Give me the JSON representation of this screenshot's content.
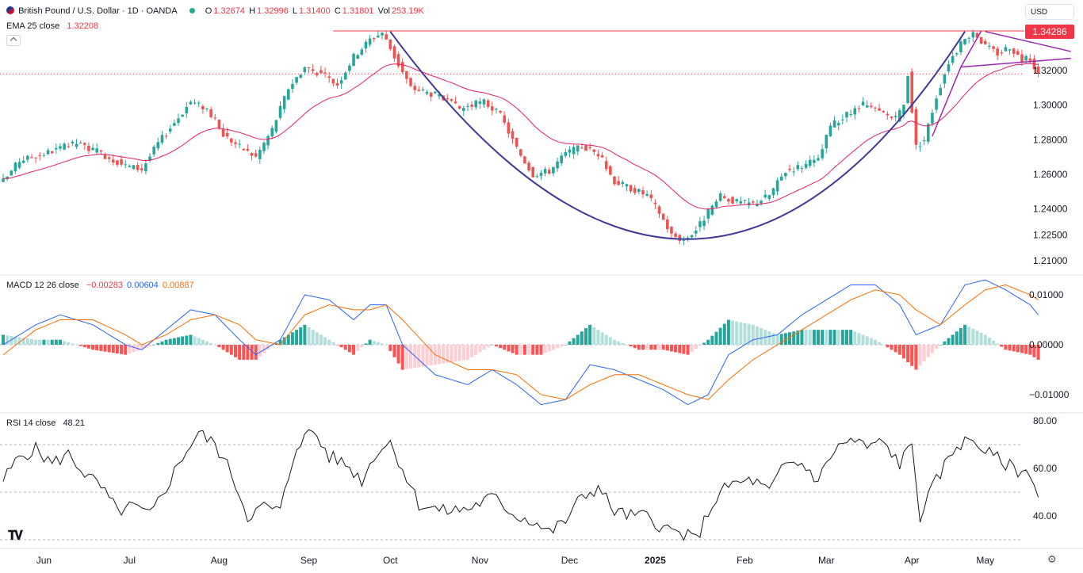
{
  "header": {
    "symbol": "British Pound / U.S. Dollar · 1D · OANDA",
    "o_label": "O",
    "o_value": "1.32674",
    "h_label": "H",
    "h_value": "1.32996",
    "l_label": "L",
    "l_value": "1.31400",
    "c_label": "C",
    "c_value": "1.31801",
    "vol_label": "Vol",
    "vol_value": "253.19K",
    "currency": "USD",
    "last_price": "1.34286"
  },
  "ema_legend": {
    "name": "EMA 25 close",
    "value": "1.32208"
  },
  "macd_legend": {
    "name": "MACD 12 26 close",
    "hist": "−0.00283",
    "macd": "0.00604",
    "signal": "0.00887"
  },
  "rsi_legend": {
    "name": "RSI 14 close",
    "value": "48.21"
  },
  "colors": {
    "up": "#26a69a",
    "down": "#ef5350",
    "ema": "#e91e63",
    "macd": "#2962ff",
    "signal": "#ff6d00",
    "pattern": "#3f3a9a",
    "flag": "#9c27b0",
    "resistance": "#f23645"
  },
  "icons": [
    "flag-icon",
    "chevron-up-icon",
    "tradingview-logo-icon",
    "settings-icon"
  ],
  "chart_data": [
    {
      "type": "candlestick",
      "title": "British Pound / U.S. Dollar · 1D · OANDA",
      "price_axis_ticks": [
        "1.32000",
        "1.30000",
        "1.28000",
        "1.26000",
        "1.24000",
        "1.22500",
        "1.21000"
      ],
      "ylim": [
        1.205,
        1.347
      ],
      "x_tick_labels": [
        "Jun",
        "Jul",
        "Aug",
        "Sep",
        "Oct",
        "Nov",
        "Dec",
        "2025",
        "Feb",
        "Mar",
        "Apr",
        "May"
      ],
      "x_tick_days": [
        10,
        31,
        53,
        75,
        95,
        117,
        139,
        160,
        182,
        202,
        223,
        241
      ],
      "n_days": 255,
      "anchors_close": [
        [
          0,
          1.256
        ],
        [
          4,
          1.268
        ],
        [
          10,
          1.272
        ],
        [
          18,
          1.278
        ],
        [
          24,
          1.272
        ],
        [
          30,
          1.265
        ],
        [
          34,
          1.263
        ],
        [
          38,
          1.278
        ],
        [
          46,
          1.302
        ],
        [
          50,
          1.298
        ],
        [
          54,
          1.283
        ],
        [
          58,
          1.276
        ],
        [
          62,
          1.27
        ],
        [
          66,
          1.286
        ],
        [
          70,
          1.31
        ],
        [
          74,
          1.322
        ],
        [
          78,
          1.318
        ],
        [
          82,
          1.312
        ],
        [
          86,
          1.328
        ],
        [
          90,
          1.338
        ],
        [
          93,
          1.342
        ],
        [
          96,
          1.328
        ],
        [
          100,
          1.31
        ],
        [
          106,
          1.306
        ],
        [
          112,
          1.298
        ],
        [
          118,
          1.302
        ],
        [
          122,
          1.294
        ],
        [
          126,
          1.275
        ],
        [
          130,
          1.26
        ],
        [
          134,
          1.262
        ],
        [
          138,
          1.272
        ],
        [
          142,
          1.276
        ],
        [
          146,
          1.272
        ],
        [
          150,
          1.256
        ],
        [
          154,
          1.252
        ],
        [
          158,
          1.248
        ],
        [
          161,
          1.238
        ],
        [
          164,
          1.225
        ],
        [
          167,
          1.222
        ],
        [
          170,
          1.228
        ],
        [
          173,
          1.238
        ],
        [
          176,
          1.247
        ],
        [
          180,
          1.244
        ],
        [
          184,
          1.243
        ],
        [
          188,
          1.248
        ],
        [
          192,
          1.262
        ],
        [
          196,
          1.265
        ],
        [
          200,
          1.268
        ],
        [
          203,
          1.288
        ],
        [
          207,
          1.294
        ],
        [
          211,
          1.3
        ],
        [
          215,
          1.296
        ],
        [
          219,
          1.292
        ],
        [
          221,
          1.3
        ],
        [
          222,
          1.318
        ],
        [
          224,
          1.276
        ],
        [
          226,
          1.28
        ],
        [
          229,
          1.305
        ],
        [
          232,
          1.325
        ],
        [
          235,
          1.335
        ],
        [
          238,
          1.343
        ],
        [
          241,
          1.334
        ],
        [
          244,
          1.33
        ],
        [
          247,
          1.334
        ],
        [
          250,
          1.326
        ],
        [
          252,
          1.327
        ],
        [
          254,
          1.318
        ]
      ],
      "ema_label": "EMA 25 close",
      "ema_last": 1.32208,
      "resistance": 1.34286,
      "last_close": 1.31801,
      "cup_bottom": {
        "day": 170,
        "price": 1.2225
      },
      "cup_left": {
        "day": 95,
        "price": 1.3425
      },
      "cup_right": {
        "day": 236,
        "price": 1.3425
      },
      "flag_upper": [
        [
          241,
          1.3425
        ],
        [
          262,
          1.331
        ]
      ],
      "flag_lower": [
        [
          235,
          1.322
        ],
        [
          262,
          1.327
        ]
      ],
      "flag_pole": [
        [
          228,
          1.282
        ],
        [
          235,
          1.322
        ],
        [
          240,
          1.3428
        ]
      ]
    },
    {
      "type": "line",
      "title": "MACD 12 26 close",
      "yticks": [
        "0.01000",
        "0.00000",
        "−0.01000"
      ],
      "ylim": [
        -0.0135,
        0.0135
      ],
      "macd_anchors": [
        [
          0,
          0.0
        ],
        [
          8,
          0.004
        ],
        [
          14,
          0.006
        ],
        [
          22,
          0.004
        ],
        [
          30,
          0.0
        ],
        [
          34,
          -0.001
        ],
        [
          40,
          0.003
        ],
        [
          46,
          0.007
        ],
        [
          52,
          0.006
        ],
        [
          58,
          0.001
        ],
        [
          62,
          -0.002
        ],
        [
          68,
          0.001
        ],
        [
          74,
          0.01
        ],
        [
          80,
          0.009
        ],
        [
          86,
          0.005
        ],
        [
          90,
          0.008
        ],
        [
          94,
          0.008
        ],
        [
          98,
          0.0
        ],
        [
          106,
          -0.006
        ],
        [
          114,
          -0.008
        ],
        [
          120,
          -0.005
        ],
        [
          126,
          -0.008
        ],
        [
          132,
          -0.012
        ],
        [
          138,
          -0.011
        ],
        [
          144,
          -0.004
        ],
        [
          150,
          -0.005
        ],
        [
          156,
          -0.007
        ],
        [
          162,
          -0.009
        ],
        [
          168,
          -0.012
        ],
        [
          173,
          -0.01
        ],
        [
          178,
          -0.002
        ],
        [
          184,
          0.001
        ],
        [
          190,
          0.002
        ],
        [
          196,
          0.006
        ],
        [
          202,
          0.009
        ],
        [
          208,
          0.012
        ],
        [
          214,
          0.012
        ],
        [
          220,
          0.008
        ],
        [
          224,
          0.002
        ],
        [
          230,
          0.004
        ],
        [
          236,
          0.012
        ],
        [
          241,
          0.013
        ],
        [
          246,
          0.011
        ],
        [
          252,
          0.008
        ],
        [
          254,
          0.006
        ]
      ],
      "signal_anchors": [
        [
          0,
          -0.002
        ],
        [
          8,
          0.003
        ],
        [
          14,
          0.005
        ],
        [
          22,
          0.005
        ],
        [
          30,
          0.002
        ],
        [
          34,
          0.0
        ],
        [
          40,
          0.002
        ],
        [
          46,
          0.005
        ],
        [
          52,
          0.006
        ],
        [
          58,
          0.004
        ],
        [
          62,
          0.001
        ],
        [
          68,
          0.0
        ],
        [
          74,
          0.006
        ],
        [
          80,
          0.008
        ],
        [
          86,
          0.007
        ],
        [
          90,
          0.007
        ],
        [
          94,
          0.008
        ],
        [
          98,
          0.005
        ],
        [
          106,
          -0.002
        ],
        [
          114,
          -0.005
        ],
        [
          120,
          -0.005
        ],
        [
          126,
          -0.006
        ],
        [
          132,
          -0.01
        ],
        [
          138,
          -0.011
        ],
        [
          144,
          -0.008
        ],
        [
          150,
          -0.006
        ],
        [
          156,
          -0.006
        ],
        [
          162,
          -0.008
        ],
        [
          168,
          -0.01
        ],
        [
          173,
          -0.011
        ],
        [
          178,
          -0.007
        ],
        [
          184,
          -0.003
        ],
        [
          190,
          0.0
        ],
        [
          196,
          0.003
        ],
        [
          202,
          0.006
        ],
        [
          208,
          0.009
        ],
        [
          214,
          0.011
        ],
        [
          220,
          0.01
        ],
        [
          224,
          0.007
        ],
        [
          230,
          0.004
        ],
        [
          236,
          0.008
        ],
        [
          241,
          0.011
        ],
        [
          246,
          0.012
        ],
        [
          252,
          0.01
        ],
        [
          254,
          0.009
        ]
      ],
      "last_values": {
        "hist": -0.00283,
        "macd": 0.00604,
        "signal": 0.00887
      }
    },
    {
      "type": "line",
      "title": "RSI 14 close",
      "yticks": [
        "80.00",
        "60.00",
        "40.00"
      ],
      "ylim": [
        27,
        82
      ],
      "bands": [
        70,
        50,
        30
      ],
      "anchors": [
        [
          0,
          55
        ],
        [
          4,
          65
        ],
        [
          8,
          68
        ],
        [
          12,
          62
        ],
        [
          16,
          66
        ],
        [
          20,
          58
        ],
        [
          24,
          52
        ],
        [
          28,
          42
        ],
        [
          32,
          44
        ],
        [
          36,
          40
        ],
        [
          40,
          52
        ],
        [
          44,
          65
        ],
        [
          48,
          75
        ],
        [
          52,
          70
        ],
        [
          56,
          58
        ],
        [
          60,
          40
        ],
        [
          64,
          44
        ],
        [
          68,
          42
        ],
        [
          72,
          70
        ],
        [
          76,
          76
        ],
        [
          80,
          65
        ],
        [
          84,
          62
        ],
        [
          88,
          55
        ],
        [
          92,
          68
        ],
        [
          95,
          71
        ],
        [
          98,
          60
        ],
        [
          102,
          45
        ],
        [
          108,
          42
        ],
        [
          114,
          43
        ],
        [
          120,
          48
        ],
        [
          126,
          40
        ],
        [
          130,
          38
        ],
        [
          134,
          33
        ],
        [
          138,
          38
        ],
        [
          142,
          48
        ],
        [
          146,
          52
        ],
        [
          150,
          42
        ],
        [
          154,
          40
        ],
        [
          158,
          40
        ],
        [
          162,
          35
        ],
        [
          167,
          32
        ],
        [
          170,
          30
        ],
        [
          174,
          45
        ],
        [
          178,
          53
        ],
        [
          184,
          55
        ],
        [
          188,
          50
        ],
        [
          192,
          62
        ],
        [
          196,
          62
        ],
        [
          200,
          55
        ],
        [
          204,
          68
        ],
        [
          208,
          72
        ],
        [
          212,
          69
        ],
        [
          216,
          71
        ],
        [
          220,
          62
        ],
        [
          223,
          70
        ],
        [
          225,
          40
        ],
        [
          229,
          55
        ],
        [
          234,
          70
        ],
        [
          238,
          72
        ],
        [
          242,
          66
        ],
        [
          246,
          62
        ],
        [
          250,
          58
        ],
        [
          252,
          59
        ],
        [
          254,
          48
        ]
      ],
      "last_value": 48.21
    }
  ]
}
